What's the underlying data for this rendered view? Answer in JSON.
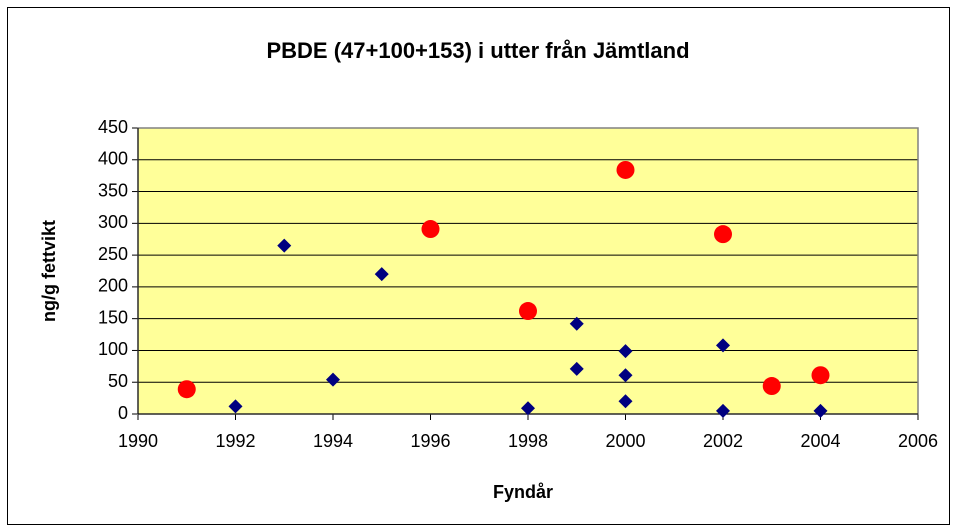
{
  "chart_data": {
    "type": "scatter",
    "title": "PBDE (47+100+153) i utter från Jämtland",
    "x_label": "Fyndår",
    "y_label": "ng/g fettvikt",
    "series": [
      {
        "color": "#000080",
        "marker": "diamond",
        "x": [
          1992,
          1993,
          1994,
          1995,
          1998,
          1999,
          1999,
          2000,
          2000,
          2000,
          2002,
          2002,
          2004
        ],
        "values": [
          12,
          265,
          54,
          220,
          9,
          142,
          71,
          99,
          61,
          20,
          108,
          5,
          5
        ]
      },
      {
        "color": "#ff0000",
        "marker": "circle",
        "x": [
          1991,
          1996,
          1998,
          2000,
          2002,
          2003,
          2004
        ],
        "values": [
          39,
          291,
          162,
          384,
          283,
          44,
          61
        ]
      }
    ],
    "xlim": [
      1990,
      2006
    ],
    "xticks": [
      1990,
      1992,
      1994,
      1996,
      1998,
      2000,
      2002,
      2004,
      2006
    ],
    "ylim": [
      0,
      450
    ],
    "yticks": [
      0,
      50,
      100,
      150,
      200,
      250,
      300,
      350,
      400,
      450
    ],
    "grid": true,
    "plot_background": "#ffff99"
  }
}
